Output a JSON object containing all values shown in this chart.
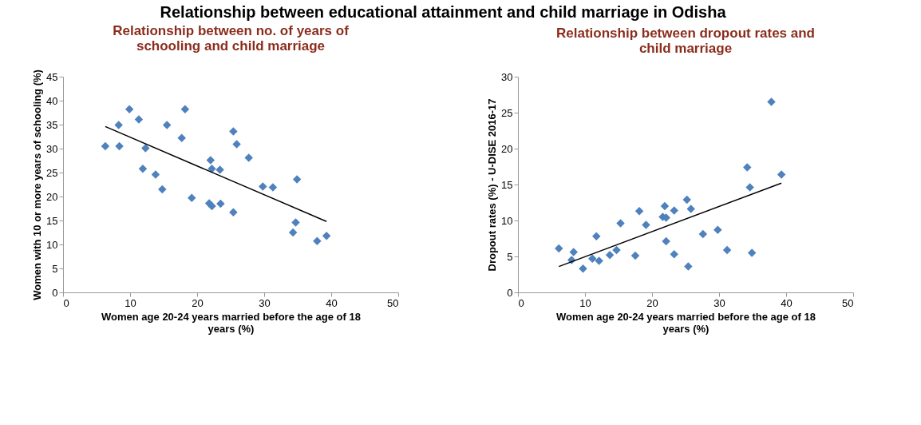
{
  "chart_data": [
    {
      "type": "scatter",
      "title": "Relationship between no. of years of\nschooling and child marriage",
      "xlabel": "Women age 20-24 years married before the age of 18\nyears (%)",
      "ylabel": "Women with 10 or more years of schooling (%)",
      "annotations": [
        "Relationship between educational attainment and child marriage in Odisha"
      ],
      "xlim": [
        0,
        50
      ],
      "xticks": [
        0,
        10,
        20,
        30,
        40,
        50
      ],
      "ylim": [
        0,
        45
      ],
      "yticks": [
        0,
        5,
        10,
        15,
        20,
        25,
        30,
        35,
        40,
        45
      ],
      "grid": false,
      "series": [
        {
          "marker": "diamond",
          "color": "#4f81bd",
          "x": [
            6.3,
            8.3,
            8.4,
            9.9,
            11.3,
            12.3,
            11.9,
            13.8,
            14.8,
            15.5,
            17.7,
            18.2,
            19.2,
            22.0,
            22.2,
            23.4,
            21.8,
            22.2,
            23.5,
            25.4,
            25.9,
            25.4,
            27.7,
            29.8,
            31.3,
            34.9,
            34.7,
            34.3,
            37.9,
            39.3
          ],
          "values": [
            30.5,
            34.9,
            30.5,
            38.2,
            36.1,
            30.1,
            25.8,
            24.6,
            21.5,
            34.9,
            32.2,
            38.2,
            19.7,
            27.6,
            25.8,
            25.6,
            18.6,
            18.0,
            18.5,
            33.6,
            30.9,
            16.7,
            28.1,
            22.1,
            21.9,
            23.6,
            14.6,
            12.5,
            10.7,
            11.8
          ]
        },
        {
          "type": "line",
          "marker": "none",
          "color": "#000000",
          "x": [
            6.3,
            39.3
          ],
          "values": [
            34.6,
            14.8
          ]
        }
      ]
    },
    {
      "type": "scatter",
      "title": "Relationship between dropout rates and\nchild marriage",
      "xlabel": "Women age 20-24 years married before the age of 18\nyears (%)",
      "ylabel": "Dropout rates (%) - U-DISE 2016-17",
      "xlim": [
        0,
        50
      ],
      "xticks": [
        0,
        10,
        20,
        30,
        40,
        50
      ],
      "ylim": [
        0,
        30
      ],
      "yticks": [
        0,
        5,
        10,
        15,
        20,
        25,
        30
      ],
      "grid": false,
      "series": [
        {
          "marker": "diamond",
          "color": "#4f81bd",
          "x": [
            6.1,
            8.3,
            8.0,
            9.7,
            11.7,
            11.1,
            12.1,
            13.7,
            14.7,
            15.3,
            17.5,
            18.1,
            19.1,
            21.6,
            21.9,
            22.1,
            22.1,
            23.3,
            23.3,
            25.2,
            25.8,
            25.4,
            27.6,
            29.8,
            31.2,
            34.2,
            34.6,
            34.9,
            37.8,
            39.3
          ],
          "values": [
            6.1,
            5.6,
            4.5,
            3.3,
            7.8,
            4.7,
            4.4,
            5.2,
            5.9,
            9.6,
            5.1,
            11.3,
            9.4,
            10.5,
            12.0,
            10.4,
            7.1,
            11.4,
            5.3,
            12.9,
            11.6,
            3.6,
            8.1,
            8.7,
            5.9,
            17.4,
            14.6,
            5.5,
            26.5,
            16.4
          ]
        },
        {
          "type": "line",
          "marker": "none",
          "color": "#000000",
          "x": [
            6.1,
            39.3
          ],
          "values": [
            3.6,
            15.2
          ]
        }
      ]
    }
  ]
}
